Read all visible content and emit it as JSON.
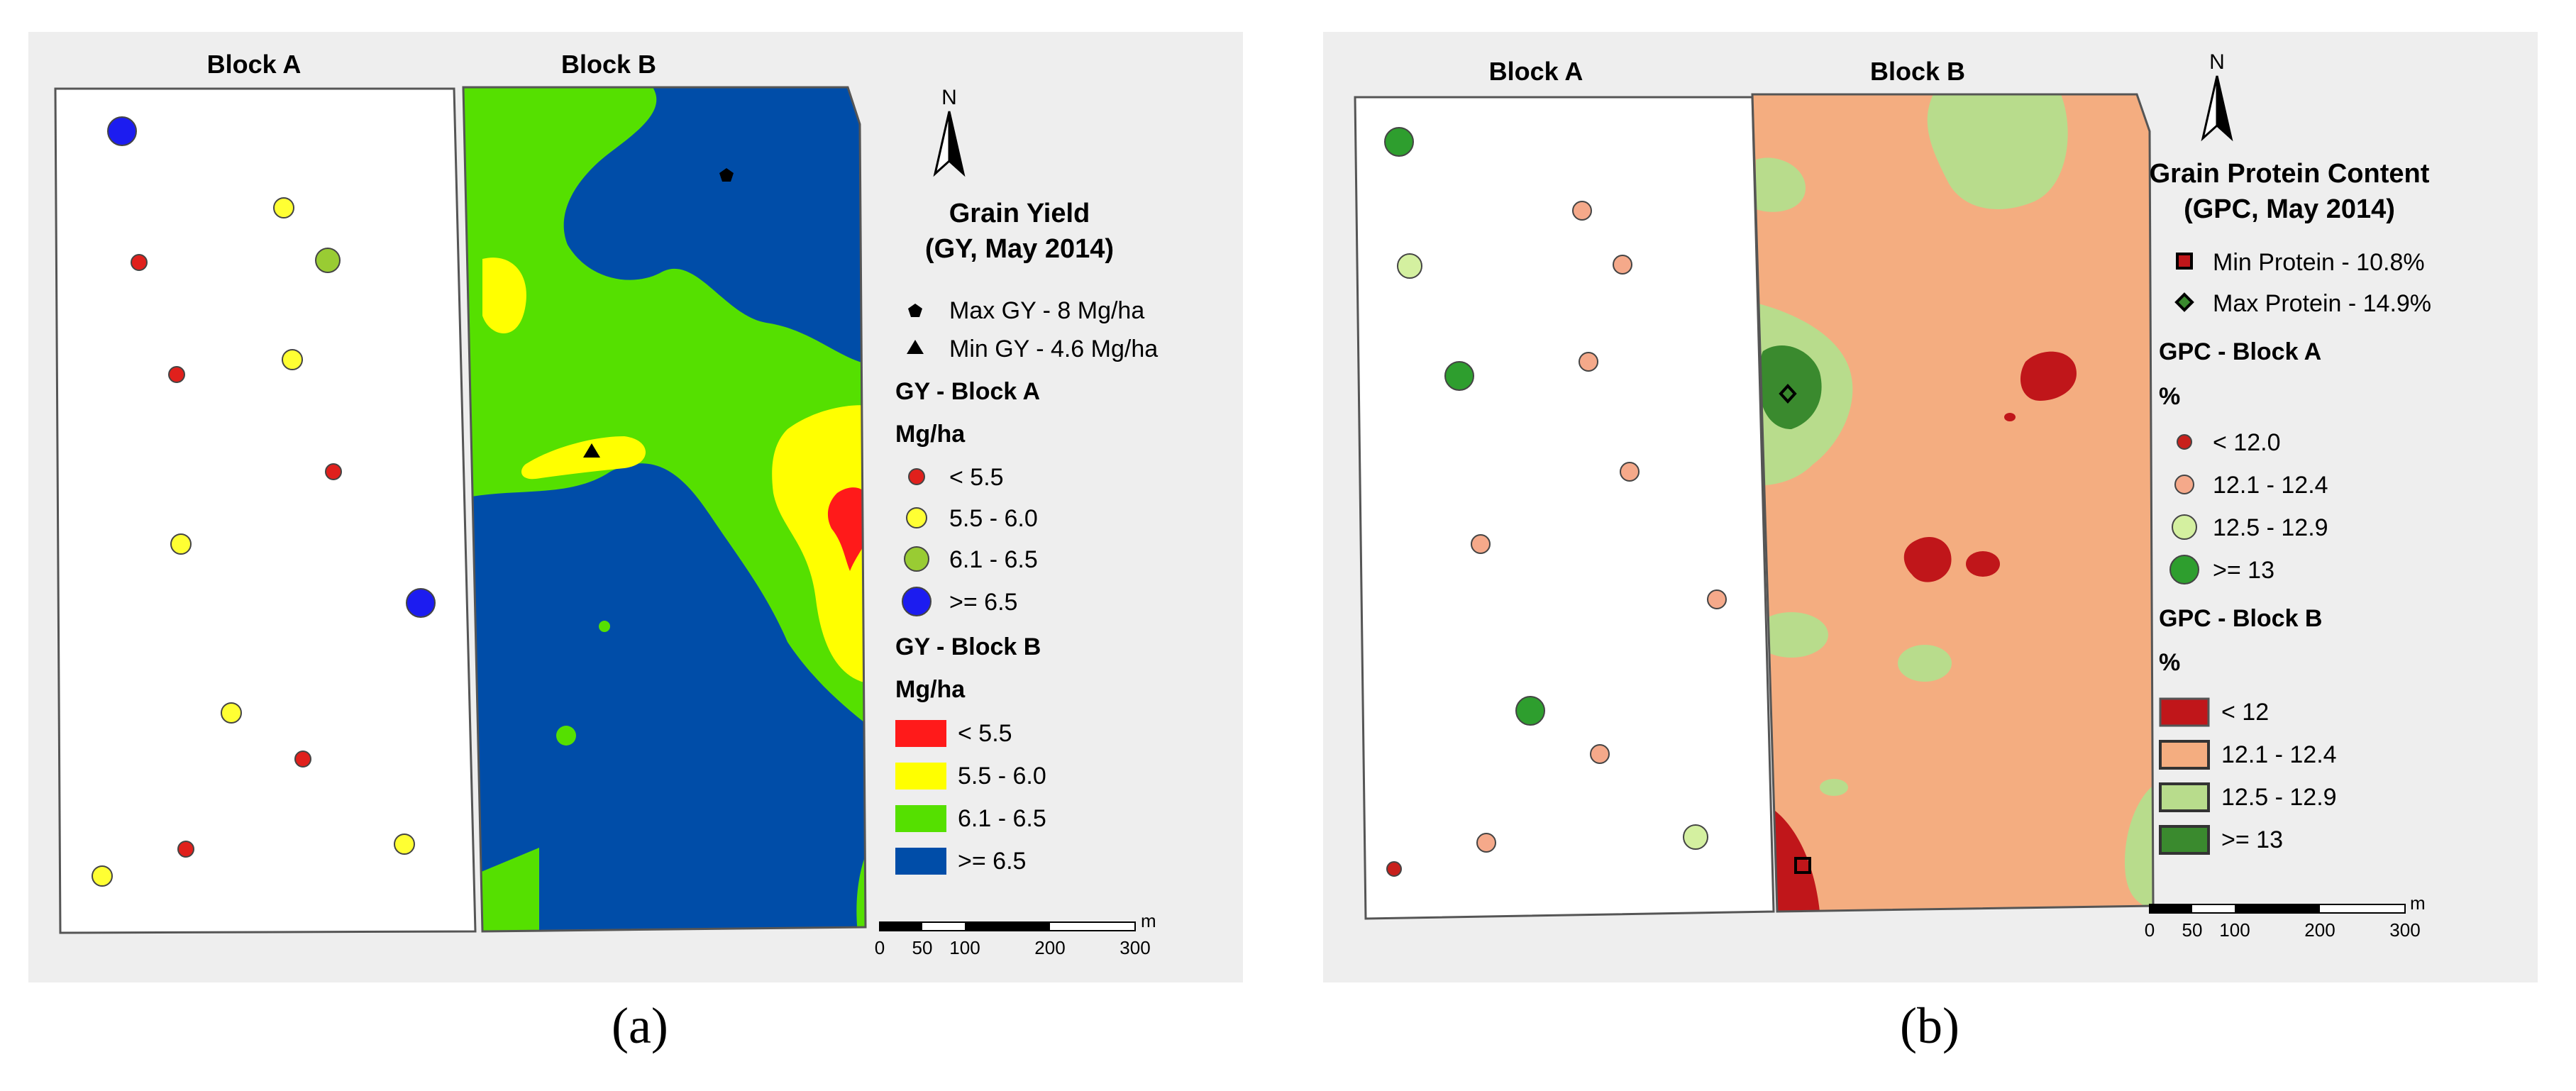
{
  "panels": {
    "a": {
      "caption": "(a)",
      "block_a_label": "Block A",
      "block_b_label": "Block B",
      "north_label": "N",
      "legend_title_1": "Grain Yield",
      "legend_title_2": "(GY, May 2014)",
      "max_marker": "Max GY - 8 Mg/ha",
      "min_marker": "Min GY - 4.6 Mg/ha",
      "block_a_heading": "GY - Block A",
      "block_a_unit": "Mg/ha",
      "block_a_classes": [
        "< 5.5",
        "5.5 - 6.0",
        "6.1 - 6.5",
        ">= 6.5"
      ],
      "block_b_heading": "GY - Block B",
      "block_b_unit": "Mg/ha",
      "block_b_classes": [
        "< 5.5",
        "5.5 - 6.0",
        "6.1 - 6.5",
        ">= 6.5"
      ],
      "colors": {
        "a_points": [
          "#e0201c",
          "#ffff33",
          "#99cc33",
          "#1c1cf0"
        ],
        "b_fill": [
          "#ff1a1a",
          "#ffff00",
          "#55e000",
          "#004da8"
        ]
      },
      "scale": {
        "unit": "m",
        "ticks": [
          "0",
          "50",
          "100",
          "200",
          "300"
        ]
      }
    },
    "b": {
      "caption": "(b)",
      "block_a_label": "Block A",
      "block_b_label": "Block B",
      "north_label": "N",
      "legend_title_1": "Grain Protein Content",
      "legend_title_2": "(GPC, May 2014)",
      "min_marker": "Min Protein - 10.8%",
      "max_marker": "Max Protein - 14.9%",
      "block_a_heading": "GPC - Block A",
      "block_a_unit": "%",
      "block_a_classes": [
        "< 12.0",
        "12.1 - 12.4",
        "12.5 - 12.9",
        ">= 13"
      ],
      "block_b_heading": "GPC - Block B",
      "block_b_unit": "%",
      "block_b_classes": [
        "< 12",
        "12.1 - 12.4",
        "12.5 - 12.9",
        ">= 13"
      ],
      "colors": {
        "a_points": [
          "#c8201c",
          "#f5a98a",
          "#d4f0a0",
          "#2e9e2e"
        ],
        "b_fill": [
          "#c0161a",
          "#f4ad80",
          "#b8dc8c",
          "#3a8a2e"
        ]
      },
      "scale": {
        "unit": "m",
        "ticks": [
          "0",
          "50",
          "100",
          "200",
          "300"
        ]
      }
    }
  }
}
